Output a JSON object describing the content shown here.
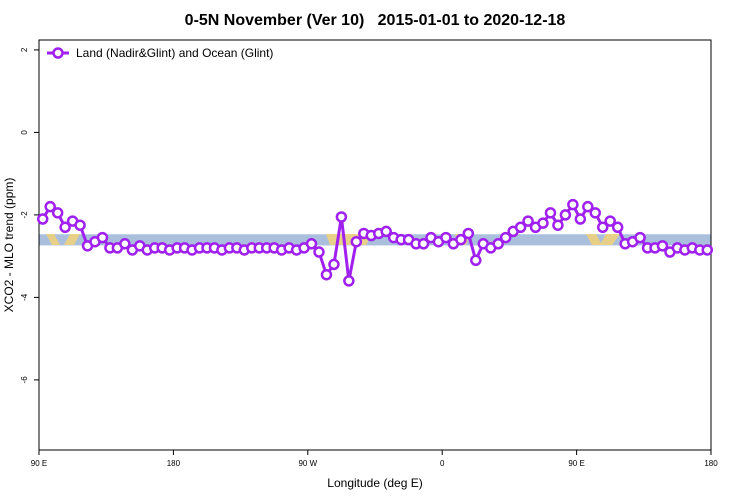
{
  "chart_data": {
    "type": "line",
    "title": "0-5N November (Ver 10)   2015-01-01 to 2020-12-18",
    "x_label": "Longitude (deg E)",
    "y_label": "XCO2 - MLO trend (ppm)",
    "xlim": [
      90,
      540
    ],
    "xticks": [
      {
        "value": 90,
        "label": "90 E"
      },
      {
        "value": 180,
        "label": "180"
      },
      {
        "value": 270,
        "label": "90 W"
      },
      {
        "value": 360,
        "label": "0"
      },
      {
        "value": 450,
        "label": "90 E"
      },
      {
        "value": 540,
        "label": "180"
      }
    ],
    "ylim": [
      -7.7,
      2.24
    ],
    "yticks": [
      2,
      0,
      -2,
      -4,
      -6
    ],
    "legend": "top-left",
    "band": [
      -2.74,
      -2.47
    ],
    "band_color": "#a9bfdc",
    "x": [
      92.5,
      97.5,
      102.5,
      107.5,
      112.5,
      117.5,
      122.5,
      127.5,
      132.5,
      137.5,
      142.5,
      147.5,
      152.5,
      157.5,
      162.5,
      167.5,
      172.5,
      177.5,
      182.5,
      187.5,
      192.5,
      197.5,
      202.5,
      207.5,
      212.5,
      217.5,
      222.5,
      227.5,
      232.5,
      237.5,
      242.5,
      247.5,
      252.5,
      257.5,
      262.5,
      267.5,
      272.5,
      277.5,
      282.5,
      287.5,
      292.5,
      297.5,
      302.5,
      307.5,
      312.5,
      317.5,
      322.5,
      327.5,
      332.5,
      337.5,
      342.5,
      347.5,
      352.5,
      357.5,
      362.5,
      367.5,
      372.5,
      377.5,
      382.5,
      387.5,
      392.5,
      397.5,
      402.5,
      407.5,
      412.5,
      417.5,
      422.5,
      427.5,
      432.5,
      437.5,
      442.5,
      447.5,
      452.5,
      457.5,
      462.5,
      467.5,
      472.5,
      477.5,
      482.5,
      487.5,
      492.5,
      497.5,
      502.5,
      507.5,
      512.5,
      517.5,
      522.5,
      527.5,
      532.5,
      537.5
    ],
    "series": [
      {
        "name": "Land (Nadir&Glint) and Ocean (Glint)",
        "color": "#a020f0",
        "values": [
          -2.1,
          -1.8,
          -1.95,
          -2.3,
          -2.15,
          -2.25,
          -2.75,
          -2.65,
          -2.55,
          -2.8,
          -2.8,
          -2.7,
          -2.85,
          -2.75,
          -2.85,
          -2.8,
          -2.8,
          -2.85,
          -2.8,
          -2.8,
          -2.85,
          -2.8,
          -2.8,
          -2.8,
          -2.85,
          -2.8,
          -2.8,
          -2.85,
          -2.8,
          -2.8,
          -2.8,
          -2.8,
          -2.85,
          -2.8,
          -2.85,
          -2.8,
          -2.7,
          -2.9,
          -3.45,
          -3.2,
          -2.05,
          -3.6,
          -2.65,
          -2.45,
          -2.5,
          -2.45,
          -2.4,
          -2.55,
          -2.6,
          -2.6,
          -2.7,
          -2.7,
          -2.55,
          -2.65,
          -2.55,
          -2.7,
          -2.6,
          -2.45,
          -3.1,
          -2.7,
          -2.8,
          -2.7,
          -2.55,
          -2.4,
          -2.3,
          -2.15,
          -2.3,
          -2.2,
          -1.95,
          -2.25,
          -2.0,
          -1.75,
          -2.1,
          -1.8,
          -1.95,
          -2.3,
          -2.15,
          -2.3,
          -2.7,
          -2.65,
          -2.55,
          -2.8,
          -2.8,
          -2.75,
          -2.9,
          -2.8,
          -2.85,
          -2.8,
          -2.85,
          -2.85
        ]
      }
    ]
  }
}
